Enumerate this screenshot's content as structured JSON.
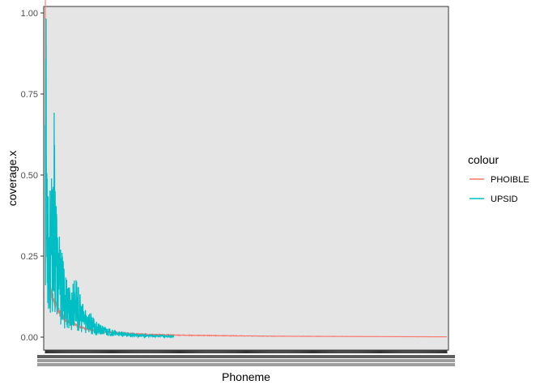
{
  "chart_data": {
    "type": "line",
    "xlabel": "Phoneme",
    "ylabel": "coverage.x",
    "x_type": "categorical",
    "x_tick_labels_note": "",
    "ylim": [
      0.0,
      1.0
    ],
    "y_ticks": [
      0.0,
      0.25,
      0.5,
      0.75,
      1.0
    ],
    "y_tick_labels": [
      "0.00",
      "0.25",
      "0.50",
      "0.75",
      "1.00"
    ],
    "grid": false,
    "panel_background": "#e5e5e5",
    "legend": {
      "title": "colour",
      "position": "right",
      "entries": [
        "PHOIBLE",
        "UPSID"
      ]
    },
    "series": [
      {
        "name": "PHOIBLE",
        "color": "#F8766D",
        "n_points": 2000,
        "description_values": [
          0.98,
          0.65,
          0.5,
          0.3,
          0.2,
          0.14,
          0.1,
          0.07,
          0.05,
          0.035,
          0.025,
          0.018,
          0.013,
          0.01,
          0.008,
          0.006,
          0.005,
          0.004,
          0.003,
          0.0025,
          0.002,
          0.0015,
          0.001
        ]
      },
      {
        "name": "UPSID",
        "color": "#00BFC4",
        "n_points": 640,
        "description_values": [
          0.91,
          0.62,
          0.45,
          0.28,
          0.25,
          0.4,
          0.2,
          0.15,
          0.12,
          0.08,
          0.11,
          0.06,
          0.05,
          0.03,
          0.02,
          0.015,
          0.01,
          0.008,
          0.006,
          0.005,
          0.004,
          0.003,
          0.002
        ]
      }
    ]
  }
}
